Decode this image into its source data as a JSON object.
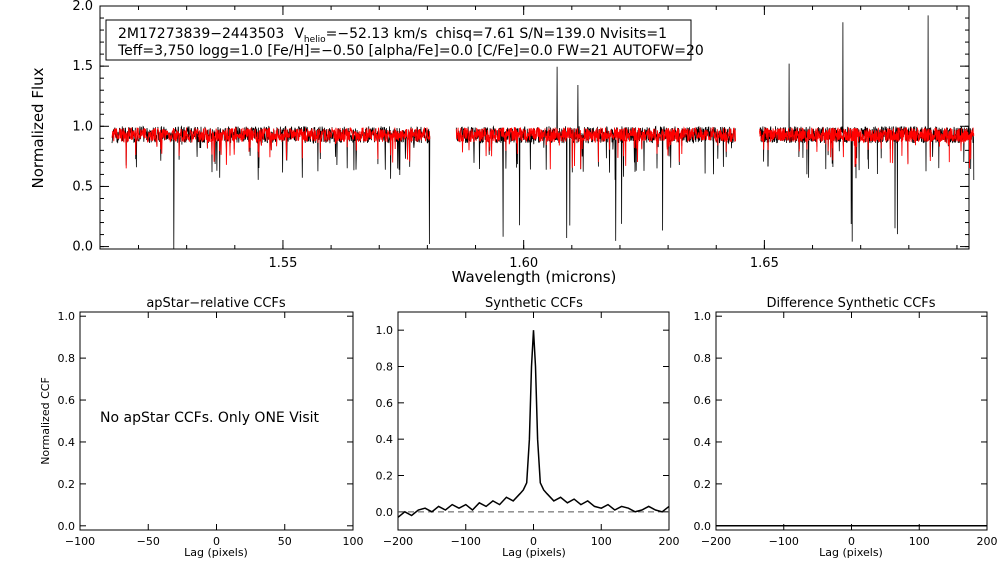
{
  "chart_data": [
    {
      "type": "line",
      "name": "spectrum",
      "xlabel": "Wavelength (microns)",
      "ylabel": "Normalized Flux",
      "xlim": [
        1.512,
        1.6925
      ],
      "ylim": [
        -0.02,
        2.0
      ],
      "xticks": [
        1.55,
        1.6,
        1.65
      ],
      "xtick_labels": [
        "1.55",
        "1.60",
        "1.65"
      ],
      "yticks": [
        0.0,
        0.5,
        1.0,
        1.5,
        2.0
      ],
      "ytick_labels": [
        "0.0",
        "0.5",
        "1.0",
        "1.5",
        "2.0"
      ],
      "chip_ranges": [
        [
          1.5145,
          1.5805
        ],
        [
          1.586,
          1.644
        ],
        [
          1.649,
          1.6935
        ]
      ],
      "series": [
        {
          "name": "observed",
          "color": "#000000",
          "continuum": 0.93
        },
        {
          "name": "model",
          "color": "#ff0000",
          "continuum": 0.93
        }
      ],
      "info": {
        "star_id": "2M17273839−2443503",
        "v_prefix": "V",
        "v_sub": "helio",
        "v_value": "=−52.13 km/s",
        "stats": "chisq=7.61  S/N=139.0  Nvisits=1",
        "params_line": "Teff=3,750 logg=1.0 [Fe/H]=−0.50 [alpha/Fe]=0.0 [C/Fe]=0.0 FW=21 AUTOFW=20"
      }
    },
    {
      "type": "line",
      "name": "apstar-ccf",
      "title": "apStar−relative CCFs",
      "xlabel": "Lag (pixels)",
      "ylabel": "Normalized CCF",
      "xlim": [
        -100,
        100
      ],
      "ylim": [
        -0.02,
        1.02
      ],
      "xticks": [
        -100,
        -50,
        0,
        50,
        100
      ],
      "xtick_labels": [
        "−100",
        "−50",
        "0",
        "50",
        "100"
      ],
      "yticks": [
        0.0,
        0.2,
        0.4,
        0.6,
        0.8,
        1.0
      ],
      "ytick_labels": [
        "0.0",
        "0.2",
        "0.4",
        "0.6",
        "0.8",
        "1.0"
      ],
      "message": "No apStar CCFs.  Only ONE Visit",
      "series": []
    },
    {
      "type": "line",
      "name": "synthetic-ccf",
      "title": "Synthetic CCFs",
      "xlabel": "Lag (pixels)",
      "ylabel": "",
      "xlim": [
        -200,
        200
      ],
      "ylim": [
        -0.1,
        1.1
      ],
      "xticks": [
        -200,
        -100,
        0,
        100,
        200
      ],
      "xtick_labels": [
        "−200",
        "−100",
        "0",
        "100",
        "200"
      ],
      "yticks": [
        0.0,
        0.2,
        0.4,
        0.6,
        0.8,
        1.0
      ],
      "ytick_labels": [
        "0.0",
        "0.2",
        "0.4",
        "0.6",
        "0.8",
        "1.0"
      ],
      "baseline": 0.0,
      "series": [
        {
          "name": "ccf",
          "color": "#000000",
          "x": [
            -200,
            -190,
            -180,
            -170,
            -160,
            -150,
            -140,
            -130,
            -120,
            -110,
            -100,
            -90,
            -80,
            -70,
            -60,
            -50,
            -40,
            -30,
            -20,
            -15,
            -10,
            -6,
            -3,
            0,
            3,
            6,
            10,
            15,
            20,
            30,
            40,
            50,
            60,
            70,
            80,
            90,
            100,
            110,
            120,
            130,
            140,
            150,
            160,
            170,
            180,
            190,
            200
          ],
          "y": [
            -0.03,
            0.0,
            -0.02,
            0.01,
            0.02,
            0.0,
            0.03,
            0.01,
            0.04,
            0.02,
            0.04,
            0.01,
            0.05,
            0.03,
            0.06,
            0.04,
            0.08,
            0.06,
            0.1,
            0.12,
            0.16,
            0.4,
            0.8,
            1.0,
            0.8,
            0.4,
            0.16,
            0.12,
            0.1,
            0.06,
            0.08,
            0.05,
            0.07,
            0.04,
            0.06,
            0.03,
            0.02,
            0.04,
            0.01,
            0.03,
            0.02,
            0.0,
            0.01,
            0.03,
            0.01,
            0.0,
            0.03
          ]
        }
      ]
    },
    {
      "type": "line",
      "name": "difference-ccf",
      "title": "Difference Synthetic CCFs",
      "xlabel": "Lag (pixels)",
      "ylabel": "",
      "xlim": [
        -200,
        200
      ],
      "ylim": [
        -0.02,
        1.02
      ],
      "xticks": [
        -200,
        -100,
        0,
        100,
        200
      ],
      "xtick_labels": [
        "−200",
        "−100",
        "0",
        "100",
        "200"
      ],
      "yticks": [
        0.0,
        0.2,
        0.4,
        0.6,
        0.8,
        1.0
      ],
      "ytick_labels": [
        "0.0",
        "0.2",
        "0.4",
        "0.6",
        "0.8",
        "1.0"
      ],
      "series": [
        {
          "name": "difference",
          "color": "#000000",
          "x": [
            -200,
            200
          ],
          "y": [
            0.0,
            0.0
          ]
        }
      ]
    }
  ]
}
